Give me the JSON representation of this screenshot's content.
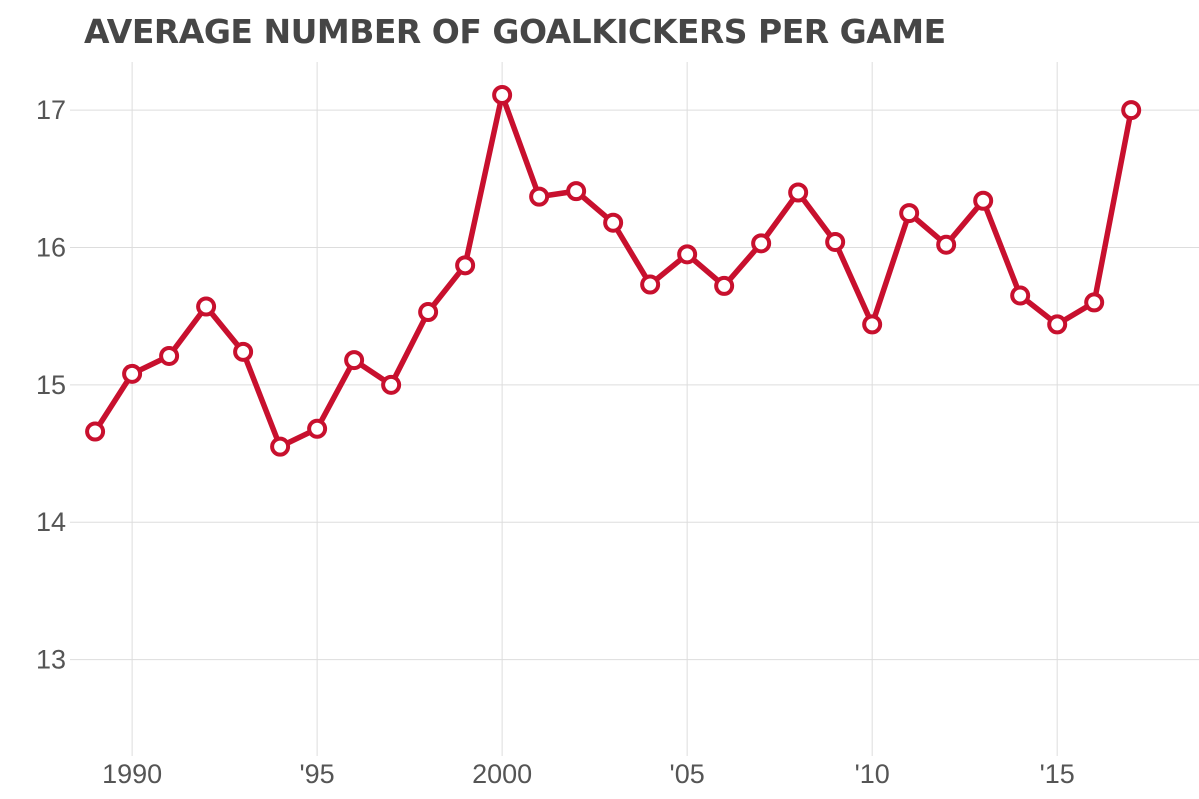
{
  "chart_data": {
    "type": "line",
    "title": "AVERAGE NUMBER OF GOALKICKERS PER GAME",
    "xlabel": "",
    "ylabel": "",
    "xlim": [
      1988.7,
      2018.4
    ],
    "ylim": [
      12.4,
      17.35
    ],
    "grid": true,
    "x_ticks": [
      {
        "value": 1990,
        "label": "1990"
      },
      {
        "value": 1995,
        "label": "'95"
      },
      {
        "value": 2000,
        "label": "2000"
      },
      {
        "value": 2005,
        "label": "'05"
      },
      {
        "value": 2010,
        "label": "'10"
      },
      {
        "value": 2015,
        "label": "'15"
      }
    ],
    "y_ticks": [
      {
        "value": 13,
        "label": "13"
      },
      {
        "value": 14,
        "label": "14"
      },
      {
        "value": 15,
        "label": "15"
      },
      {
        "value": 16,
        "label": "16"
      },
      {
        "value": 17,
        "label": "17"
      }
    ],
    "series": [
      {
        "color": "#c8102e",
        "x": [
          1989,
          1990,
          1991,
          1992,
          1993,
          1994,
          1995,
          1996,
          1997,
          1998,
          1999,
          2000,
          2001,
          2002,
          2003,
          2004,
          2005,
          2006,
          2007,
          2008,
          2009,
          2010,
          2011,
          2012,
          2013,
          2014,
          2015,
          2016,
          2017
        ],
        "y": [
          14.66,
          15.08,
          15.21,
          15.57,
          15.24,
          14.55,
          14.68,
          15.18,
          15.0,
          15.53,
          15.87,
          17.11,
          16.37,
          16.41,
          16.18,
          15.73,
          15.95,
          15.72,
          16.03,
          16.4,
          16.04,
          15.44,
          16.25,
          16.02,
          16.34,
          15.65,
          15.44,
          15.6,
          17.0
        ]
      }
    ]
  }
}
